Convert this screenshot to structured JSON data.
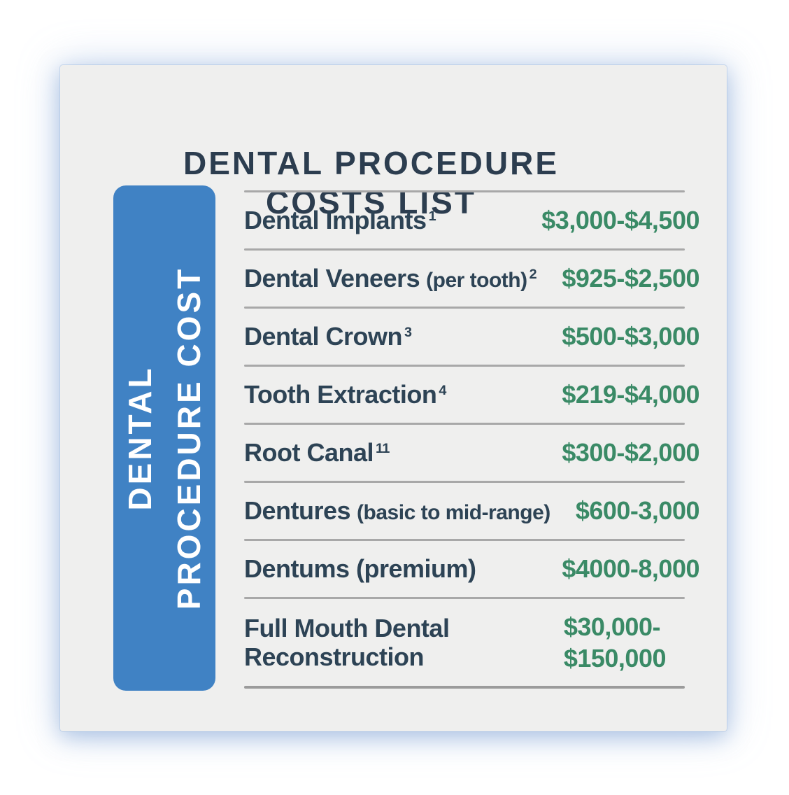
{
  "title": {
    "line1": "DENTAL PROCEDURE",
    "line2": "COSTS LIST"
  },
  "sidebar": {
    "line1": "DENTAL",
    "line2": "PROCEDURE COST"
  },
  "table": {
    "rows": [
      {
        "name": "Dental Implants",
        "sup": "1",
        "note": "",
        "price": "$3,000-$4,500"
      },
      {
        "name": "Dental Veneers",
        "note": "(per tooth)",
        "sup": "2",
        "price": "$925-$2,500"
      },
      {
        "name": "Dental Crown",
        "sup": "3",
        "note": "",
        "price": "$500-$3,000"
      },
      {
        "name": "Tooth Extraction",
        "sup": "4",
        "note": "",
        "price": "$219-$4,000"
      },
      {
        "name": "Root Canal",
        "sup": "11",
        "note": "",
        "price": "$300-$2,000"
      },
      {
        "name": "Dentures",
        "note": "(basic to mid-range)",
        "sup": "",
        "price": "$600-3,000"
      },
      {
        "name": "Dentums (premium)",
        "note": "",
        "sup": "",
        "price": "$4000-8,000"
      },
      {
        "name": "Full Mouth Dental Reconstruction",
        "note": "",
        "sup": "",
        "price": "$30,000-\n$150,000",
        "price_block": true
      }
    ]
  },
  "colors": {
    "card_background": "#efefee",
    "accent_blue": "#4082c4",
    "navy_text": "#2d4355",
    "green_price": "#3a8a66",
    "divider_gray": "#a8a8a8",
    "sidebar_text": "#ffffff"
  },
  "chart_data": {
    "type": "table",
    "title": "DENTAL PROCEDURE COSTS LIST",
    "columns": [
      "Procedure",
      "Cost"
    ],
    "rows": [
      [
        "Dental Implants [1]",
        "$3,000-$4,500"
      ],
      [
        "Dental Veneers (per tooth) [2]",
        "$925-$2,500"
      ],
      [
        "Dental Crown [3]",
        "$500-$3,000"
      ],
      [
        "Tooth Extraction [4]",
        "$219-$4,000"
      ],
      [
        "Root Canal [11]",
        "$300-$2,000"
      ],
      [
        "Dentures (basic to mid-range)",
        "$600-3,000"
      ],
      [
        "Dentums (premium)",
        "$4000-8,000"
      ],
      [
        "Full Mouth Dental Reconstruction",
        "$30,000-$150,000"
      ]
    ],
    "cost_ranges_usd": [
      {
        "procedure": "Dental Implants",
        "min": 3000,
        "max": 4500
      },
      {
        "procedure": "Dental Veneers (per tooth)",
        "min": 925,
        "max": 2500
      },
      {
        "procedure": "Dental Crown",
        "min": 500,
        "max": 3000
      },
      {
        "procedure": "Tooth Extraction",
        "min": 219,
        "max": 4000
      },
      {
        "procedure": "Root Canal",
        "min": 300,
        "max": 2000
      },
      {
        "procedure": "Dentures (basic to mid-range)",
        "min": 600,
        "max": 3000
      },
      {
        "procedure": "Dentums (premium)",
        "min": 4000,
        "max": 8000
      },
      {
        "procedure": "Full Mouth Dental Reconstruction",
        "min": 30000,
        "max": 150000
      }
    ]
  }
}
